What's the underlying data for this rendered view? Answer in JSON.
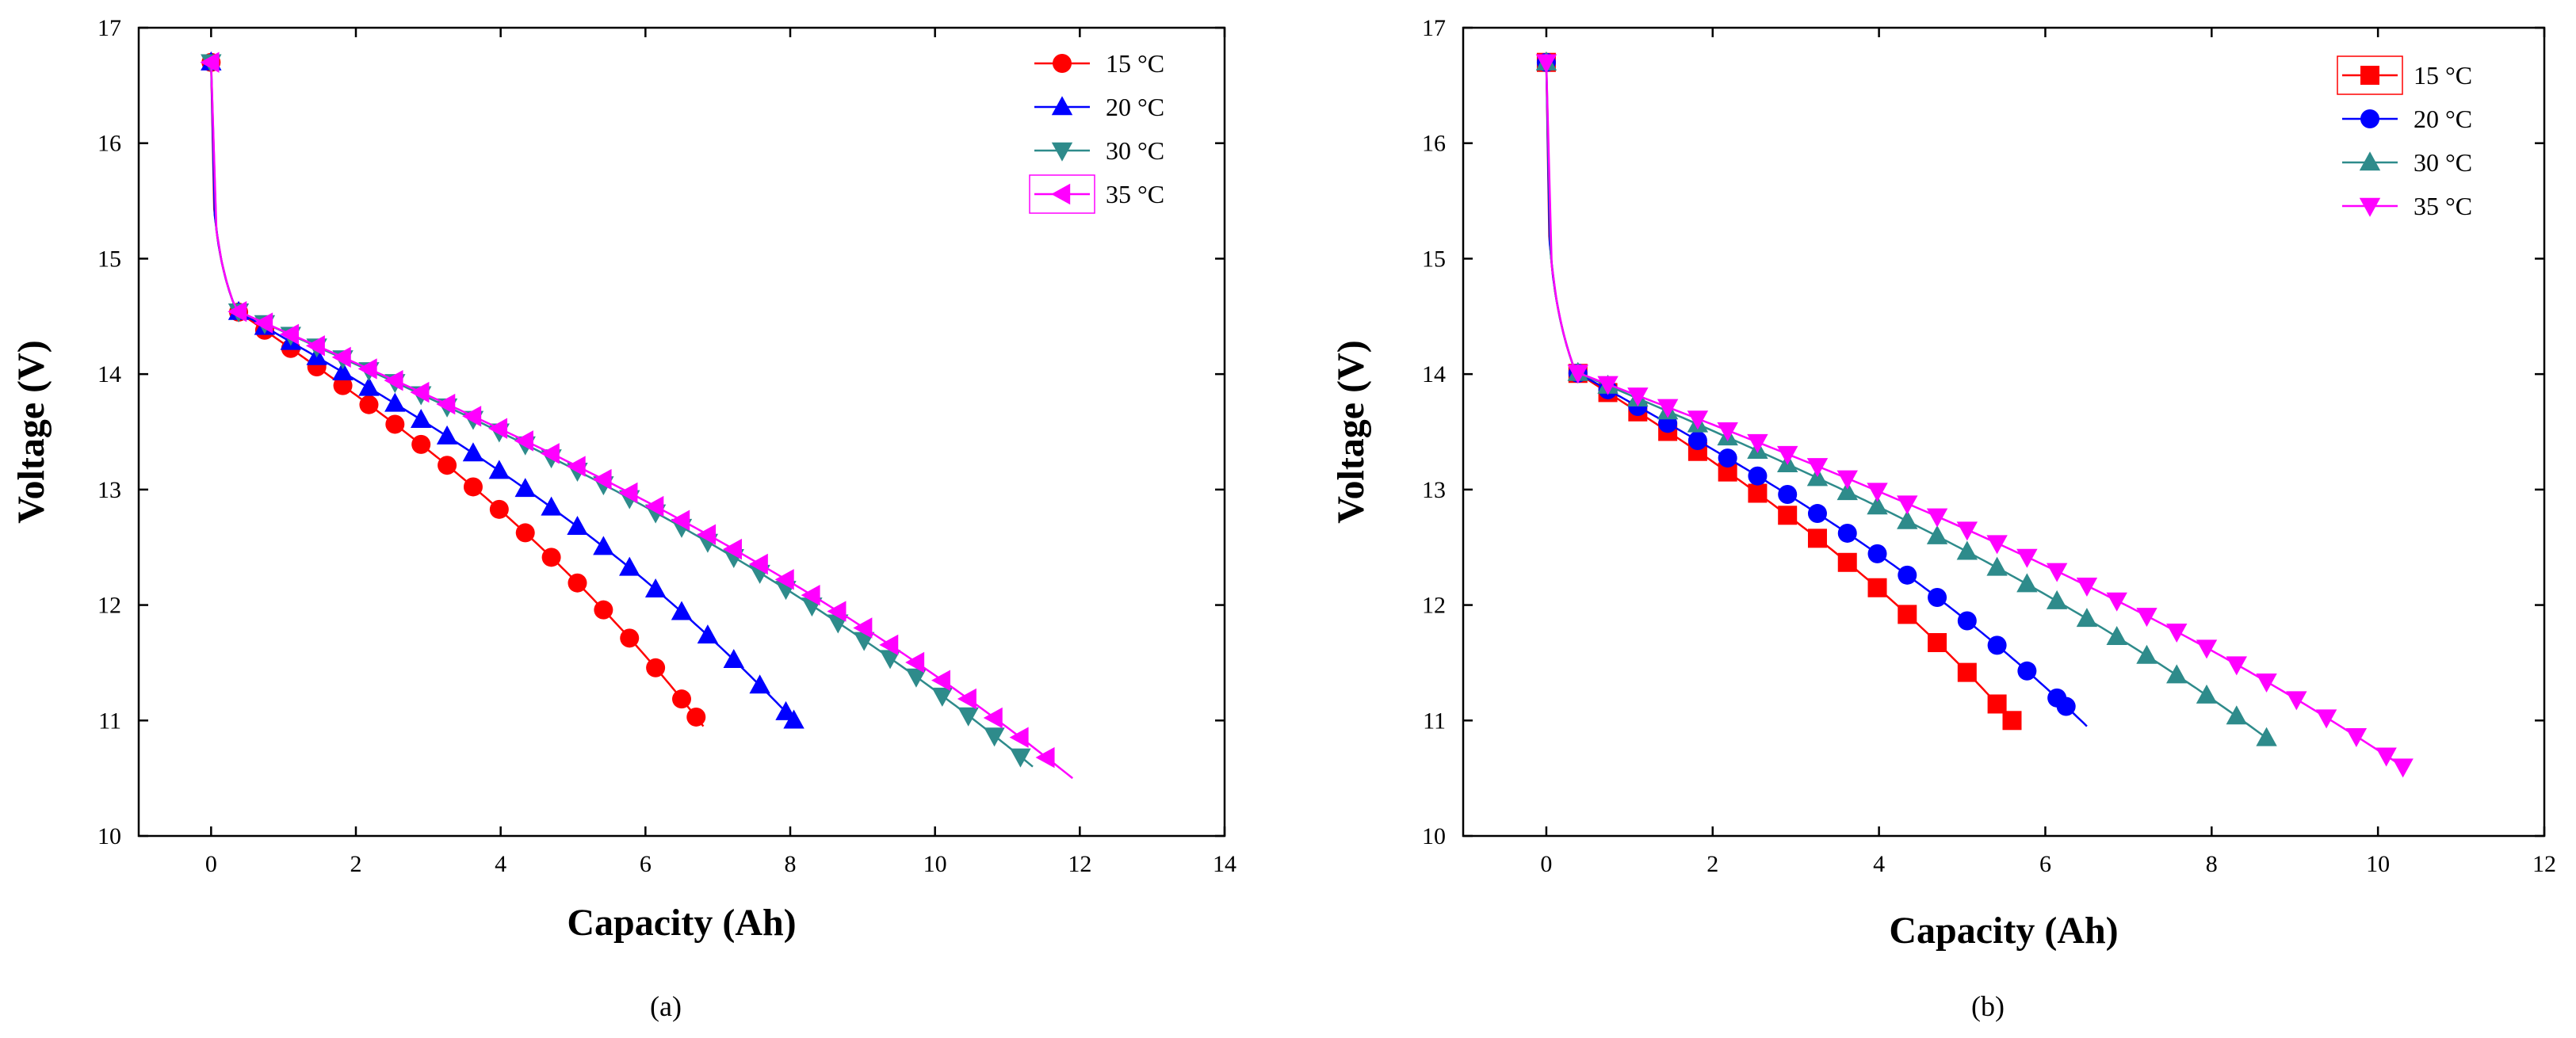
{
  "chart_data": [
    {
      "type": "line",
      "panel_label": "(a)",
      "xlabel": "Capacity (Ah)",
      "ylabel": "Voltage (V)",
      "xlim": [
        -1,
        14
      ],
      "ylim": [
        10,
        17
      ],
      "xticks": [
        0,
        2,
        4,
        6,
        8,
        10,
        12,
        14
      ],
      "yticks": [
        10,
        11,
        12,
        13,
        14,
        15,
        16,
        17
      ],
      "x_tick_labels": [
        "0",
        "2",
        "4",
        "6",
        "8",
        "10",
        "12",
        "14"
      ],
      "y_tick_labels": [
        "10",
        "11",
        "12",
        "13",
        "14",
        "15",
        "16",
        "17"
      ],
      "legend_position": "top-right",
      "series": [
        {
          "name": "15 °C",
          "color": "#ff0000",
          "marker": "circle",
          "v_end": 11.25,
          "x_end": 6.7,
          "line_x_end": 6.8,
          "line_v_end": 10.95
        },
        {
          "name": "20 °C",
          "color": "#0000ff",
          "marker": "triangle-up",
          "v_end": 11.0,
          "x_end": 8.05,
          "line_x_end": 8.05,
          "line_v_end": 11.0
        },
        {
          "name": "30 °C",
          "color": "#2e8b8b",
          "marker": "triangle-down",
          "v_end": 10.7,
          "x_end": 11.2,
          "line_x_end": 11.35,
          "line_v_end": 10.6
        },
        {
          "name": "35 °C",
          "color": "#ff00ff",
          "marker": "triangle-left",
          "v_end": 10.8,
          "x_end": 11.6,
          "line_x_end": 11.9,
          "line_v_end": 10.5
        }
      ]
    },
    {
      "type": "line",
      "panel_label": "(b)",
      "xlabel": "Capacity (Ah)",
      "ylabel": "Voltage (V)",
      "xlim": [
        -1,
        12
      ],
      "ylim": [
        10,
        17
      ],
      "xticks": [
        0,
        2,
        4,
        6,
        8,
        10,
        12
      ],
      "yticks": [
        10,
        11,
        12,
        13,
        14,
        15,
        16,
        17
      ],
      "x_tick_labels": [
        "0",
        "2",
        "4",
        "6",
        "8",
        "10",
        "12"
      ],
      "y_tick_labels": [
        "10",
        "11",
        "12",
        "13",
        "14",
        "15",
        "16",
        "17"
      ],
      "legend_position": "top-right",
      "series": [
        {
          "name": "15 °C",
          "color": "#ff0000",
          "marker": "square",
          "v_end": 11.0,
          "x_end": 5.6,
          "line_x_end": 5.6,
          "line_v_end": 11.0
        },
        {
          "name": "20 °C",
          "color": "#0000ff",
          "marker": "circle",
          "v_end": 11.2,
          "x_end": 6.25,
          "line_x_end": 6.5,
          "line_v_end": 10.95
        },
        {
          "name": "30 °C",
          "color": "#2e8b8b",
          "marker": "triangle-up",
          "v_end": 10.8,
          "x_end": 8.75,
          "line_x_end": 8.75,
          "line_v_end": 10.8
        },
        {
          "name": "35 °C",
          "color": "#ff00ff",
          "marker": "triangle-down",
          "v_end": 10.6,
          "x_end": 10.3,
          "line_x_end": 10.3,
          "line_v_end": 10.6
        }
      ]
    }
  ]
}
